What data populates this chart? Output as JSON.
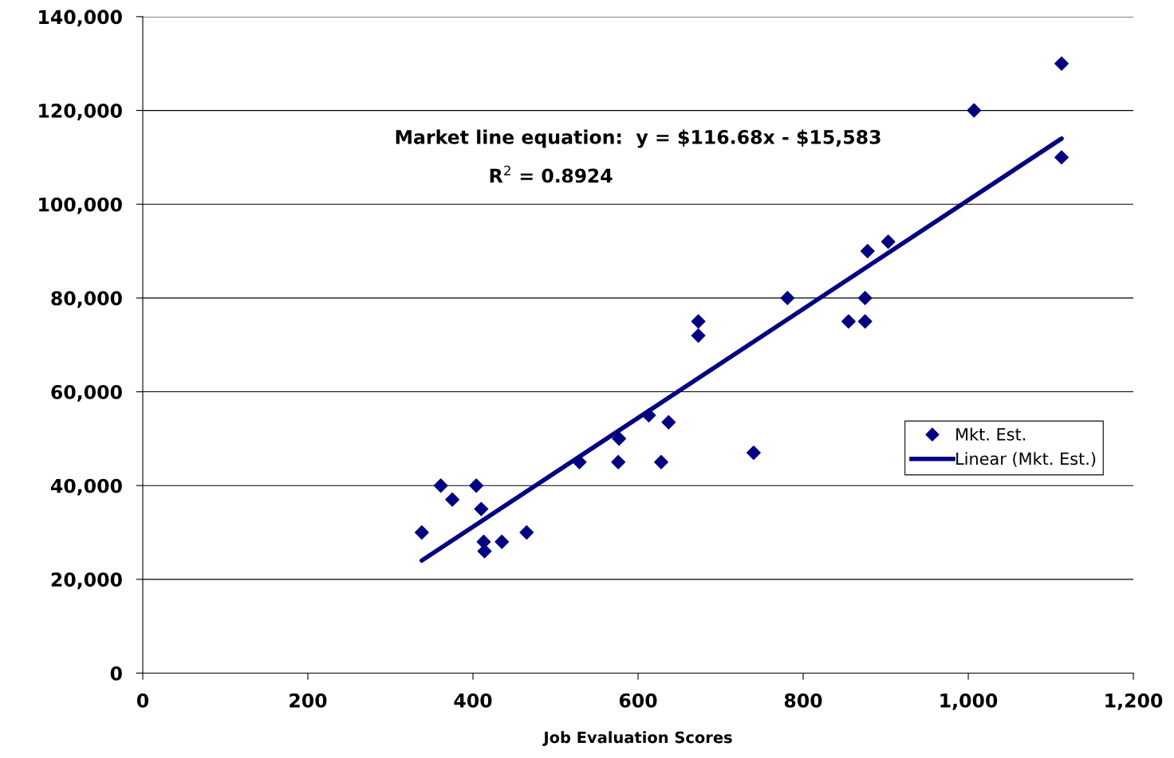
{
  "chart_data": {
    "type": "scatter",
    "xlabel": "Job Evaluation Scores",
    "xlim": [
      0,
      1200
    ],
    "xticks": [
      0,
      200,
      400,
      {
        "value": 600,
        "label": "600"
      },
      800,
      {
        "value": 1000,
        "label": "1,000"
      },
      {
        "value": 1200,
        "label": "1,200"
      }
    ],
    "ylim": [
      0,
      140000
    ],
    "yticks": [
      0,
      {
        "value": 20000,
        "label": "20,000"
      },
      {
        "value": 40000,
        "label": "40,000"
      },
      {
        "value": 60000,
        "label": "60,000"
      },
      {
        "value": 80000,
        "label": "80,000"
      },
      {
        "value": 100000,
        "label": "100,000"
      },
      {
        "value": 120000,
        "label": "120,000"
      },
      {
        "value": 140000,
        "label": "140,000"
      }
    ],
    "grid": "y",
    "legend": "right",
    "series": [
      {
        "name": "Mkt. Est.",
        "color": "#000080",
        "marker": "diamond",
        "x": [
          338,
          361,
          375,
          404,
          410,
          413,
          414,
          435,
          465,
          529,
          577,
          576,
          613,
          628,
          637,
          673,
          673,
          740,
          781,
          855,
          875,
          875,
          878,
          903,
          1007,
          1113,
          1113
        ],
        "values": [
          30000,
          40000,
          37000,
          40000,
          35000,
          28000,
          26000,
          28000,
          30000,
          45000,
          50000,
          45000,
          55000,
          45000,
          53500,
          75000,
          72000,
          47000,
          80000,
          75000,
          75000,
          80000,
          90000,
          92000,
          120000,
          130000,
          110000
        ]
      },
      {
        "name": "Linear (Mkt. Est.)",
        "color": "#000080",
        "type": "line",
        "x": [
          338,
          1113
        ],
        "values": [
          24000,
          114000
        ],
        "marker": "none"
      }
    ],
    "annotations": [
      "Market line equation:  y = $116.68x - $15,583",
      "R$^{2}$ = 0.8924"
    ]
  }
}
